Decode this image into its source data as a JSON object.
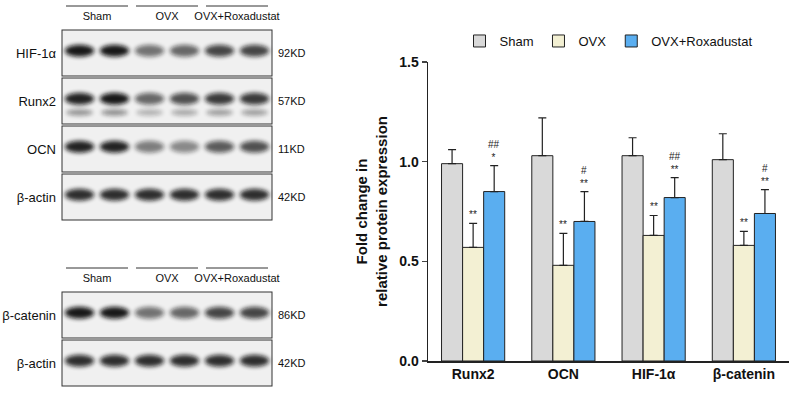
{
  "blots": [
    {
      "groups": [
        "Sham",
        "OVX",
        "OVX+Roxadustat"
      ],
      "rows": [
        {
          "protein": "HIF-1α",
          "size": "92KD"
        },
        {
          "protein": "Runx2",
          "size": "57KD"
        },
        {
          "protein": "OCN",
          "size": "11KD"
        },
        {
          "protein": "β-actin",
          "size": "42KD"
        }
      ]
    },
    {
      "groups": [
        "Sham",
        "OVX",
        "OVX+Roxadustat"
      ],
      "rows": [
        {
          "protein": "β-catenin",
          "size": "86KD"
        },
        {
          "protein": "β-actin",
          "size": "42KD"
        }
      ]
    }
  ],
  "chart_data": {
    "type": "bar",
    "categories": [
      "Runx2",
      "OCN",
      "HIF-1α",
      "β-catenin"
    ],
    "series": [
      {
        "name": "Sham",
        "color": "#d9d9d9",
        "values": [
          0.99,
          1.03,
          1.03,
          1.01
        ],
        "errors": [
          0.07,
          0.19,
          0.09,
          0.13
        ],
        "significance": [
          null,
          null,
          null,
          null
        ]
      },
      {
        "name": "OVX",
        "color": "#f3f0d3",
        "values": [
          0.57,
          0.48,
          0.63,
          0.58
        ],
        "errors": [
          0.12,
          0.16,
          0.1,
          0.07
        ],
        "significance": [
          [
            "**"
          ],
          [
            "**"
          ],
          [
            "**"
          ],
          [
            "**"
          ]
        ]
      },
      {
        "name": "OVX+Roxadustat",
        "color": "#5aaef0",
        "values": [
          0.85,
          0.7,
          0.82,
          0.74
        ],
        "errors": [
          0.13,
          0.15,
          0.1,
          0.12
        ],
        "significance": [
          [
            "##",
            "*"
          ],
          [
            "#",
            "**"
          ],
          [
            "##",
            "**"
          ],
          [
            "#",
            "**"
          ]
        ]
      }
    ],
    "y_label": "Fold change in\nrelative protein expression",
    "ylim": [
      0,
      1.5
    ],
    "yticks": [
      {
        "value": 0,
        "label": "0.0"
      },
      0.5,
      {
        "value": 1,
        "label": "1.0"
      },
      1.5
    ],
    "grid": false,
    "legend": "top"
  }
}
